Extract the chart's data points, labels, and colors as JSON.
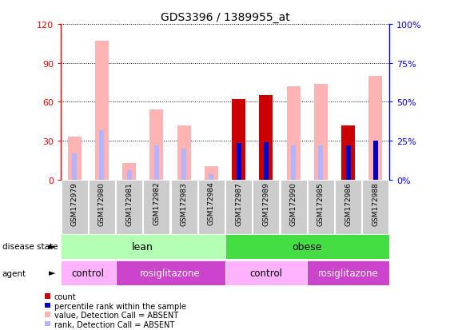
{
  "title": "GDS3396 / 1389955_at",
  "samples": [
    "GSM172979",
    "GSM172980",
    "GSM172981",
    "GSM172982",
    "GSM172983",
    "GSM172984",
    "GSM172987",
    "GSM172989",
    "GSM172990",
    "GSM172985",
    "GSM172986",
    "GSM172988"
  ],
  "count": [
    0,
    0,
    0,
    0,
    0,
    0,
    62,
    65,
    0,
    0,
    42,
    0
  ],
  "percentile_rank": [
    0,
    0,
    0,
    0,
    0,
    0,
    28,
    29,
    0,
    0,
    26,
    30
  ],
  "value_absent": [
    33,
    107,
    13,
    54,
    42,
    10,
    0,
    0,
    72,
    74,
    0,
    80
  ],
  "rank_absent": [
    20,
    38,
    7,
    26,
    24,
    4,
    0,
    0,
    26,
    26,
    0,
    29
  ],
  "ylim_left": [
    0,
    120
  ],
  "yticks_left": [
    0,
    30,
    60,
    90,
    120
  ],
  "ytick_labels_left": [
    "0",
    "30",
    "60",
    "90",
    "120"
  ],
  "ytick_labels_right": [
    "0%",
    "25%",
    "50%",
    "75%",
    "100%"
  ],
  "color_count": "#cc0000",
  "color_percentile": "#0000cc",
  "color_value_absent": "#ffb3b3",
  "color_rank_absent": "#b3b3ff",
  "lean_color": "#b3ffb3",
  "obese_color": "#44dd44",
  "control_color": "#ffb3ff",
  "rosi_color": "#cc44cc",
  "bg_color": "#cccccc",
  "wide_bar_width": 0.5,
  "narrow_bar_width": 0.18
}
